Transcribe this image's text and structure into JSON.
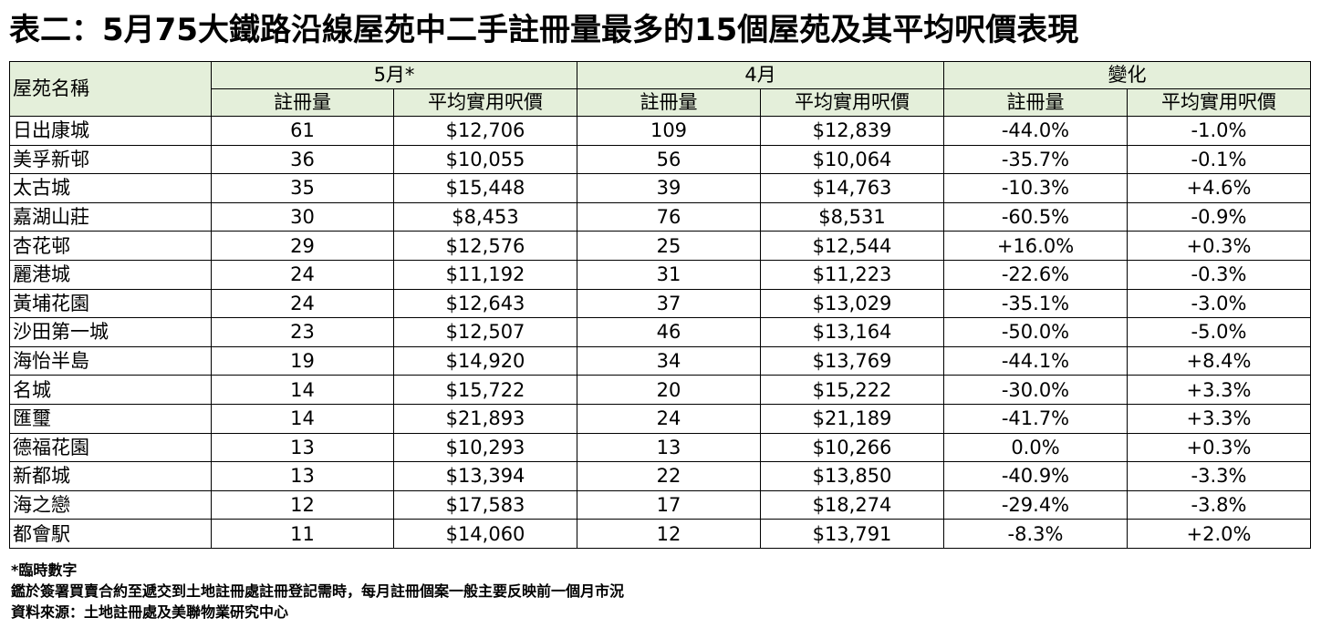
{
  "title": "表二：5月75大鐵路沿線屋苑中二手註冊量最多的15個屋苑及其平均呎價表現",
  "table": {
    "estate_header": "屋苑名稱",
    "group_headers": [
      "5月*",
      "4月",
      "變化"
    ],
    "sub_headers": [
      "註冊量",
      "平均實用呎價",
      "註冊量",
      "平均實用呎價",
      "註冊量",
      "平均實用呎價"
    ],
    "rows": [
      [
        "日出康城",
        "61",
        "$12,706",
        "109",
        "$12,839",
        "-44.0%",
        "-1.0%"
      ],
      [
        "美孚新邨",
        "36",
        "$10,055",
        "56",
        "$10,064",
        "-35.7%",
        "-0.1%"
      ],
      [
        "太古城",
        "35",
        "$15,448",
        "39",
        "$14,763",
        "-10.3%",
        "+4.6%"
      ],
      [
        "嘉湖山莊",
        "30",
        "$8,453",
        "76",
        "$8,531",
        "-60.5%",
        "-0.9%"
      ],
      [
        "杏花邨",
        "29",
        "$12,576",
        "25",
        "$12,544",
        "+16.0%",
        "+0.3%"
      ],
      [
        "麗港城",
        "24",
        "$11,192",
        "31",
        "$11,223",
        "-22.6%",
        "-0.3%"
      ],
      [
        "黃埔花園",
        "24",
        "$12,643",
        "37",
        "$13,029",
        "-35.1%",
        "-3.0%"
      ],
      [
        "沙田第一城",
        "23",
        "$12,507",
        "46",
        "$13,164",
        "-50.0%",
        "-5.0%"
      ],
      [
        "海怡半島",
        "19",
        "$14,920",
        "34",
        "$13,769",
        "-44.1%",
        "+8.4%"
      ],
      [
        "名城",
        "14",
        "$15,722",
        "20",
        "$15,222",
        "-30.0%",
        "+3.3%"
      ],
      [
        "匯璽",
        "14",
        "$21,893",
        "24",
        "$21,189",
        "-41.7%",
        "+3.3%"
      ],
      [
        "德福花園",
        "13",
        "$10,293",
        "13",
        "$10,266",
        "0.0%",
        "+0.3%"
      ],
      [
        "新都城",
        "13",
        "$13,394",
        "22",
        "$13,850",
        "-40.9%",
        "-3.3%"
      ],
      [
        "海之戀",
        "12",
        "$17,583",
        "17",
        "$18,274",
        "-29.4%",
        "-3.8%"
      ],
      [
        "都會駅",
        "11",
        "$14,060",
        "12",
        "$13,791",
        "-8.3%",
        "+2.0%"
      ]
    ]
  },
  "notes": [
    "*臨時數字",
    "鑑於簽署買賣合約至遞交到土地註冊處註冊登記需時，每月註冊個案一般主要反映前一個月市況",
    "資料來源：土地註冊處及美聯物業研究中心"
  ],
  "colors": {
    "header_bg": "#e4efda",
    "border": "#000000"
  }
}
